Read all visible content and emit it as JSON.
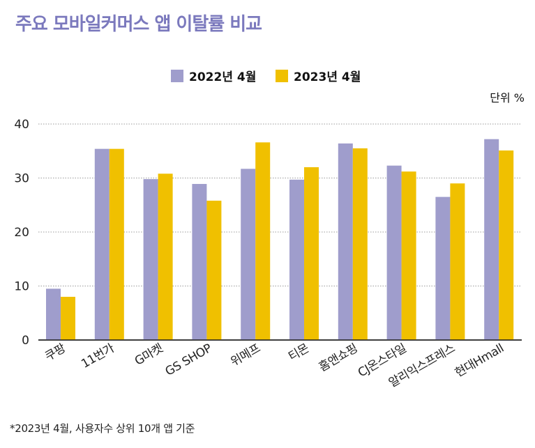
{
  "title": "주요 모바일커머스 앱 이탈률 비교",
  "unit": "단위 %",
  "footnote": "*2023년 4월, 사용자수 상위 10개 앱 기준",
  "chart_data": {
    "type": "bar",
    "title": "주요 모바일커머스 앱 이탈률 비교",
    "xlabel": "",
    "ylabel": "단위 %",
    "categories": [
      "쿠팡",
      "11번가",
      "G마켓",
      "GS SHOP",
      "위메프",
      "티몬",
      "홈앤쇼핑",
      "CJ온스타일",
      "알리익스프레스",
      "현대Hmall"
    ],
    "series": [
      {
        "name": "2022년 4월",
        "color": "#9f9dcc",
        "values": [
          9.5,
          35.4,
          29.8,
          28.9,
          31.7,
          29.7,
          36.4,
          32.3,
          26.5,
          37.2
        ]
      },
      {
        "name": "2023년 4월",
        "color": "#f0c000",
        "values": [
          8.0,
          35.4,
          30.8,
          25.8,
          36.6,
          32.0,
          35.5,
          31.2,
          29.0,
          35.1
        ]
      }
    ],
    "ylim": [
      0,
      40
    ],
    "yticks": [
      0,
      10,
      20,
      30,
      40
    ],
    "grid": true,
    "legend": "top-center"
  }
}
